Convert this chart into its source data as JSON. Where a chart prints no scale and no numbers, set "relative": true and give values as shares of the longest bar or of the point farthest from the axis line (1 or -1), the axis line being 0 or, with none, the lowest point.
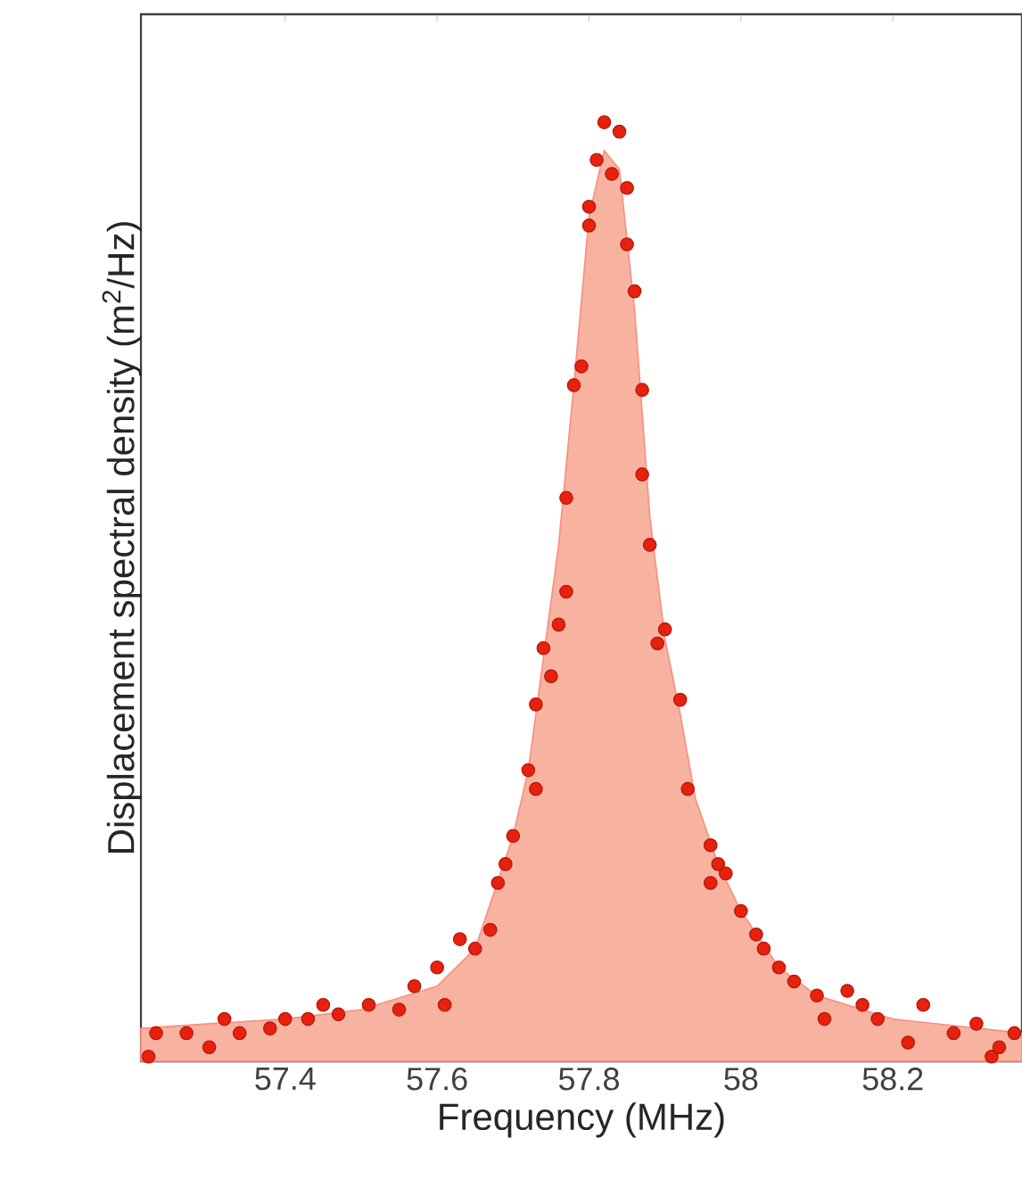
{
  "chart_data": {
    "type": "scatter",
    "xlabel": "Frequency (MHz)",
    "ylabel": "Displacement spectral density (m$^{2}$/Hz)",
    "relative": true,
    "xlim": [
      57.21,
      58.37
    ],
    "xticks": [
      57.4,
      57.6,
      57.8,
      58,
      58.2
    ],
    "series": [
      {
        "type": "area",
        "color": "#f8b2a0",
        "x": [
          57.21,
          57.3,
          57.4,
          57.5,
          57.6,
          57.65,
          57.7,
          57.72,
          57.74,
          57.76,
          57.78,
          57.8,
          57.82,
          57.84,
          57.86,
          57.88,
          57.9,
          57.92,
          57.94,
          57.97,
          58.0,
          58.05,
          58.1,
          58.2,
          58.37
        ],
        "values": [
          0.035,
          0.04,
          0.045,
          0.055,
          0.08,
          0.12,
          0.24,
          0.31,
          0.43,
          0.55,
          0.72,
          0.9,
          0.97,
          0.95,
          0.8,
          0.58,
          0.45,
          0.37,
          0.28,
          0.21,
          0.16,
          0.1,
          0.07,
          0.045,
          0.03
        ]
      },
      {
        "color": "#e8200e",
        "marker": "circle",
        "x": [
          57.22,
          57.23,
          57.27,
          57.3,
          57.32,
          57.34,
          57.38,
          57.4,
          57.43,
          57.45,
          57.47,
          57.51,
          57.55,
          57.57,
          57.6,
          57.61,
          57.63,
          57.65,
          57.67,
          57.68,
          57.69,
          57.7,
          57.72,
          57.73,
          57.73,
          57.74,
          57.75,
          57.76,
          57.77,
          57.77,
          57.78,
          57.79,
          57.8,
          57.8,
          57.81,
          57.82,
          57.83,
          57.84,
          57.85,
          57.85,
          57.86,
          57.87,
          57.87,
          57.88,
          57.89,
          57.9,
          57.92,
          57.93,
          57.96,
          57.96,
          57.97,
          57.98,
          58.0,
          58.02,
          58.03,
          58.05,
          58.07,
          58.1,
          58.11,
          58.14,
          58.16,
          58.18,
          58.22,
          58.24,
          58.28,
          58.31,
          58.33,
          58.34,
          58.36
        ],
        "values": [
          0.005,
          0.03,
          0.03,
          0.015,
          0.045,
          0.03,
          0.035,
          0.045,
          0.045,
          0.06,
          0.05,
          0.06,
          0.055,
          0.08,
          0.1,
          0.06,
          0.13,
          0.12,
          0.14,
          0.19,
          0.21,
          0.24,
          0.31,
          0.29,
          0.38,
          0.44,
          0.41,
          0.465,
          0.5,
          0.6,
          0.72,
          0.74,
          0.91,
          0.89,
          0.96,
          1.0,
          0.945,
          0.99,
          0.93,
          0.87,
          0.82,
          0.715,
          0.625,
          0.55,
          0.445,
          0.46,
          0.385,
          0.29,
          0.23,
          0.19,
          0.21,
          0.2,
          0.16,
          0.135,
          0.12,
          0.1,
          0.085,
          0.07,
          0.045,
          0.075,
          0.06,
          0.045,
          0.02,
          0.06,
          0.03,
          0.04,
          0.005,
          0.015,
          0.03
        ]
      }
    ]
  }
}
